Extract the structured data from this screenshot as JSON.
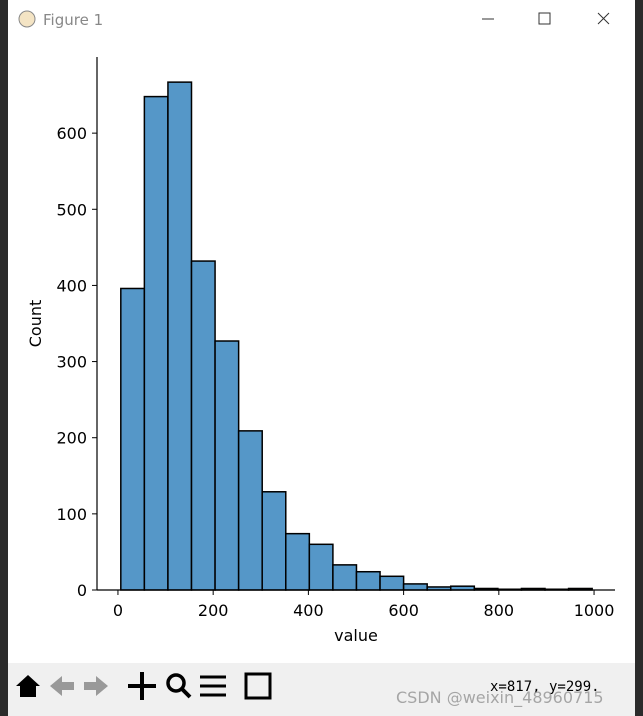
{
  "window": {
    "title": "Figure 1",
    "coordinates": "x=817, y=299."
  },
  "watermark": "CSDN @weixin_48960715",
  "chart_data": {
    "type": "histogram",
    "xlabel": "value",
    "ylabel": "Count",
    "bins": [
      6,
      55.5,
      105,
      154.5,
      204,
      253.5,
      303,
      352.5,
      402,
      451.5,
      501,
      550.5,
      600,
      649.5,
      699,
      748.5,
      798,
      847.5,
      897,
      946.5,
      996
    ],
    "counts": [
      396,
      648,
      667,
      432,
      327,
      209,
      129,
      74,
      60,
      33,
      24,
      18,
      8,
      4,
      5,
      2,
      1,
      2,
      1,
      2
    ],
    "color": "#5597c8",
    "xlim": [
      -44,
      1044
    ],
    "ylim": [
      0,
      700
    ],
    "xticks": [
      0,
      200,
      400,
      600,
      800,
      1000
    ],
    "yticks": [
      0,
      100,
      200,
      300,
      400,
      500,
      600
    ]
  }
}
